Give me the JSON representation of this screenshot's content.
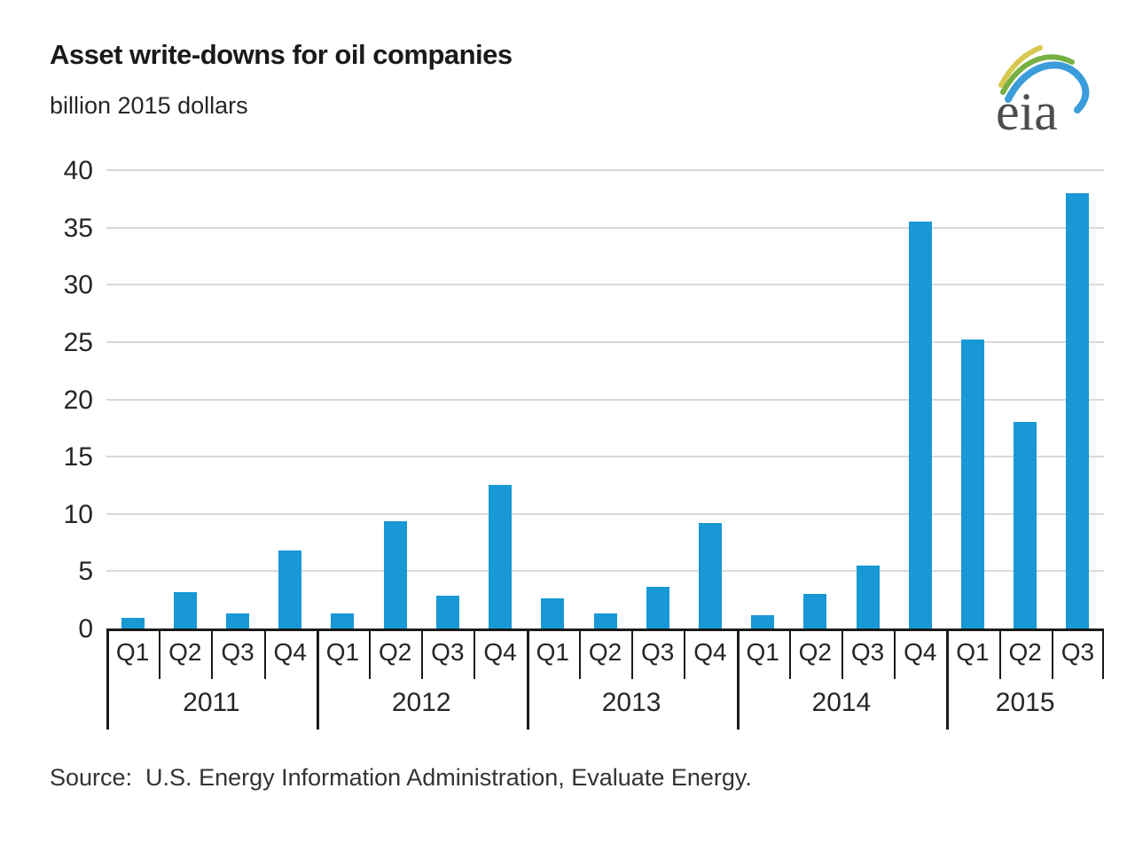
{
  "header": {
    "title": "Asset write-downs for oil companies",
    "subtitle": "billion 2015 dollars"
  },
  "logo": {
    "text": "eia"
  },
  "footer": {
    "source_line": "Source:  U.S. Energy Information Administration, Evaluate Energy."
  },
  "colors": {
    "bar": "#1898d4",
    "gridline": "#d9d9d9",
    "axis": "#1a1a1a",
    "text": "#262626",
    "logo_blue": "#3b9cd9",
    "logo_green": "#76b043",
    "logo_yellow": "#d7c84f",
    "logo_text": "#4d4d4f"
  },
  "chart_data": {
    "type": "bar",
    "title": "Asset write-downs for oil companies",
    "subtitle": "billion 2015 dollars",
    "xlabel": "",
    "ylabel": "billion 2015 dollars",
    "ylim": [
      0,
      40
    ],
    "ytick_interval": 5,
    "yticks": [
      0,
      5,
      10,
      15,
      20,
      25,
      30,
      35,
      40
    ],
    "grid": true,
    "legend": "none",
    "years": [
      {
        "label": "2011",
        "quarters": [
          "Q1",
          "Q2",
          "Q3",
          "Q4"
        ],
        "values": [
          0.9,
          3.2,
          1.3,
          6.8
        ]
      },
      {
        "label": "2012",
        "quarters": [
          "Q1",
          "Q2",
          "Q3",
          "Q4"
        ],
        "values": [
          1.3,
          9.4,
          2.9,
          12.5
        ]
      },
      {
        "label": "2013",
        "quarters": [
          "Q1",
          "Q2",
          "Q3",
          "Q4"
        ],
        "values": [
          2.6,
          1.3,
          3.6,
          9.2
        ]
      },
      {
        "label": "2014",
        "quarters": [
          "Q1",
          "Q2",
          "Q3",
          "Q4"
        ],
        "values": [
          1.2,
          3.0,
          5.5,
          35.5
        ]
      },
      {
        "label": "2015",
        "quarters": [
          "Q1",
          "Q2",
          "Q3"
        ],
        "values": [
          25.2,
          18.0,
          38.0
        ]
      }
    ]
  }
}
